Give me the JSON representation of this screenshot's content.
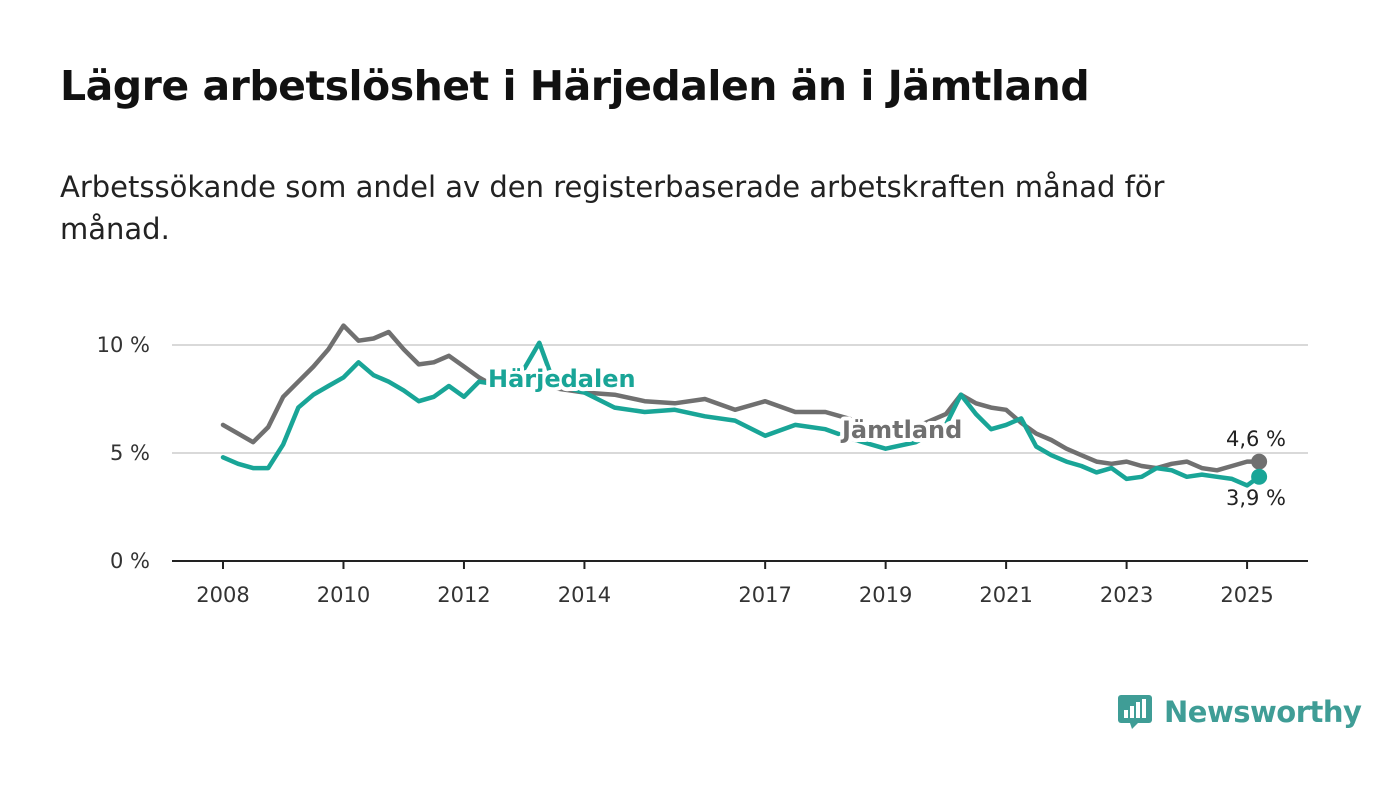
{
  "title": "Lägre arbetslöshet i Härjedalen än i Jämtland",
  "subtitle": "Arbetssökande som andel av den registerbaserade arbetskraften månad för månad.",
  "brand": {
    "name": "Newsworthy",
    "color": "#3f9d96",
    "icon": "bar-chart-speech-bubble-icon"
  },
  "chart_data": {
    "type": "line",
    "title": "Lägre arbetslöshet i Härjedalen än i Jämtland",
    "xlabel": "",
    "ylabel": "",
    "xlim": [
      2007.9,
      2025.6
    ],
    "ylim": [
      0,
      12
    ],
    "grid": true,
    "x_ticks": [
      {
        "value": 2008,
        "label": "2008"
      },
      {
        "value": 2010,
        "label": "2010"
      },
      {
        "value": 2012,
        "label": "2012"
      },
      {
        "value": 2014,
        "label": "2014"
      },
      {
        "value": 2017,
        "label": "2017"
      },
      {
        "value": 2019,
        "label": "2019"
      },
      {
        "value": 2021,
        "label": "2021"
      },
      {
        "value": 2023,
        "label": "2023"
      },
      {
        "value": 2025,
        "label": "2025"
      }
    ],
    "y_ticks": [
      {
        "value": 0,
        "label": "0 %"
      },
      {
        "value": 5,
        "label": "5 %"
      },
      {
        "value": 10,
        "label": "10 %"
      }
    ],
    "series": [
      {
        "name": "Jämtland",
        "color": "#707070",
        "end_label": "4,6 %",
        "x": [
          2008.0,
          2008.25,
          2008.5,
          2008.75,
          2009.0,
          2009.25,
          2009.5,
          2009.75,
          2010.0,
          2010.25,
          2010.5,
          2010.75,
          2011.0,
          2011.25,
          2011.5,
          2011.75,
          2012.0,
          2012.25,
          2012.5,
          2013.0,
          2013.5,
          2014.0,
          2014.5,
          2015.0,
          2015.5,
          2016.0,
          2016.5,
          2017.0,
          2017.5,
          2018.0,
          2018.5,
          2019.0,
          2019.5,
          2020.0,
          2020.25,
          2020.5,
          2020.75,
          2021.0,
          2021.25,
          2021.5,
          2021.75,
          2022.0,
          2022.25,
          2022.5,
          2022.75,
          2023.0,
          2023.25,
          2023.5,
          2023.75,
          2024.0,
          2024.25,
          2024.5,
          2024.75,
          2025.0,
          2025.2
        ],
        "values": [
          6.3,
          5.9,
          5.5,
          6.2,
          7.6,
          8.3,
          9.0,
          9.8,
          10.9,
          10.2,
          10.3,
          10.6,
          9.8,
          9.1,
          9.2,
          9.5,
          9.0,
          8.5,
          8.1,
          8.2,
          8.0,
          7.8,
          7.7,
          7.4,
          7.3,
          7.5,
          7.0,
          7.4,
          6.9,
          6.9,
          6.5,
          6.0,
          6.2,
          6.8,
          7.7,
          7.3,
          7.1,
          7.0,
          6.4,
          5.9,
          5.6,
          5.2,
          4.9,
          4.6,
          4.5,
          4.6,
          4.4,
          4.3,
          4.5,
          4.6,
          4.3,
          4.2,
          4.4,
          4.6,
          4.6
        ]
      },
      {
        "name": "Härjedalen",
        "color": "#19a597",
        "end_label": "3,9 %",
        "x": [
          2008.0,
          2008.25,
          2008.5,
          2008.75,
          2009.0,
          2009.25,
          2009.5,
          2009.75,
          2010.0,
          2010.25,
          2010.5,
          2010.75,
          2011.0,
          2011.25,
          2011.5,
          2011.75,
          2012.0,
          2012.25,
          2012.5,
          2013.0,
          2013.25,
          2013.5,
          2014.0,
          2014.5,
          2015.0,
          2015.5,
          2016.0,
          2016.5,
          2017.0,
          2017.5,
          2018.0,
          2018.5,
          2019.0,
          2019.5,
          2020.0,
          2020.25,
          2020.5,
          2020.75,
          2021.0,
          2021.25,
          2021.5,
          2021.75,
          2022.0,
          2022.25,
          2022.5,
          2022.75,
          2023.0,
          2023.25,
          2023.5,
          2023.75,
          2024.0,
          2024.25,
          2024.5,
          2024.75,
          2025.0,
          2025.2
        ],
        "values": [
          4.8,
          4.5,
          4.3,
          4.3,
          5.4,
          7.1,
          7.7,
          8.1,
          8.5,
          9.2,
          8.6,
          8.3,
          7.9,
          7.4,
          7.6,
          8.1,
          7.6,
          8.3,
          8.2,
          8.9,
          10.1,
          8.2,
          7.8,
          7.1,
          6.9,
          7.0,
          6.7,
          6.5,
          5.8,
          6.3,
          6.1,
          5.6,
          5.2,
          5.5,
          6.3,
          7.7,
          6.8,
          6.1,
          6.3,
          6.6,
          5.3,
          4.9,
          4.6,
          4.4,
          4.1,
          4.3,
          3.8,
          3.9,
          4.3,
          4.2,
          3.9,
          4.0,
          3.9,
          3.8,
          3.5,
          3.9
        ]
      }
    ]
  }
}
